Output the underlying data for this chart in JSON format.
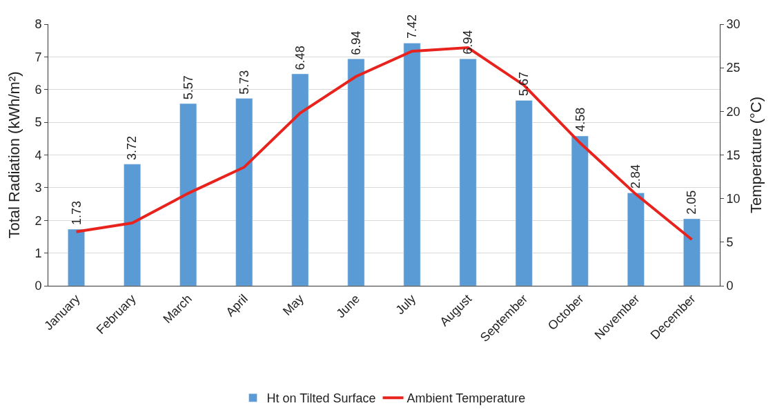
{
  "chart_data": {
    "type": "bar",
    "ylabel": "Total Radiation (kWh/m²)",
    "y2label": "Temperature (°C)",
    "categories": [
      "January",
      "February",
      "March",
      "April",
      "May",
      "June",
      "July",
      "August",
      "September",
      "October",
      "November",
      "December"
    ],
    "series": [
      {
        "name": "Ht on Tilted Surface",
        "color": "#5b9bd5",
        "values": [
          1.73,
          3.72,
          5.57,
          5.73,
          6.48,
          6.94,
          7.42,
          6.94,
          5.67,
          4.58,
          2.84,
          2.05
        ],
        "value_labels": [
          "1.73",
          "3.72",
          "5.57",
          "5.73",
          "6.48",
          "6.94",
          "7.42",
          "6.94",
          "5.67",
          "4.58",
          "2.84",
          "2.05"
        ]
      },
      {
        "name": "Ambient Temperature",
        "type": "line",
        "axis": "y2",
        "color": "#e8231e",
        "values": [
          6.2,
          7.2,
          10.6,
          13.6,
          19.8,
          24.0,
          26.9,
          27.3,
          23.0,
          16.4,
          10.5,
          5.3
        ]
      }
    ],
    "ylim": [
      0,
      8
    ],
    "yticks": [
      0,
      1,
      2,
      3,
      4,
      5,
      6,
      7,
      8
    ],
    "y2lim": [
      0,
      30
    ],
    "y2ticks": [
      0,
      5,
      10,
      15,
      20,
      25,
      30
    ],
    "grid": "y",
    "legend": "bottom",
    "marker": "none",
    "line_style": "solid"
  }
}
